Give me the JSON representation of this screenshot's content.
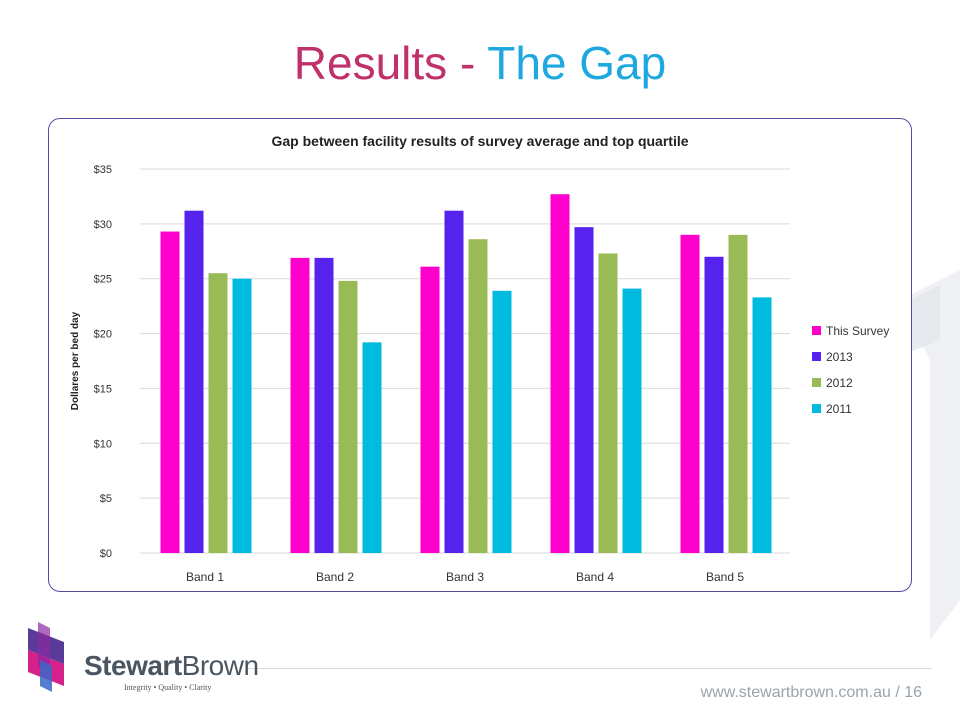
{
  "slide": {
    "title_part1": "Results - ",
    "title_part2": "The Gap",
    "footer": "www.stewartbrown.com.au / 16"
  },
  "logo": {
    "name_part1": "Stewart",
    "name_part2": "Brown",
    "tagline": "Integrity • Quality • Clarity"
  },
  "colors": {
    "title_red": "#c0306a",
    "title_blue": "#1ea8e0",
    "frame": "#5b4a9e"
  },
  "chart_data": {
    "type": "bar",
    "title": "Gap between facility results of survey average and top quartile",
    "xlabel": "",
    "ylabel": "Dollares per bed day",
    "categories": [
      "Band 1",
      "Band 2",
      "Band 3",
      "Band 4",
      "Band 5"
    ],
    "series": [
      {
        "name": "This Survey",
        "color": "#ff00cc",
        "values": [
          29.3,
          26.9,
          26.1,
          32.7,
          29.0
        ]
      },
      {
        "name": "2013",
        "color": "#5522ee",
        "values": [
          31.2,
          26.9,
          31.2,
          29.7,
          27.0
        ]
      },
      {
        "name": "2012",
        "color": "#99bb55",
        "values": [
          25.5,
          24.8,
          28.6,
          27.3,
          29.0
        ]
      },
      {
        "name": "2011",
        "color": "#00bbdd",
        "values": [
          25.0,
          19.2,
          23.9,
          24.1,
          23.3
        ]
      }
    ],
    "ylim": [
      0,
      35
    ],
    "yticks": [
      0,
      5,
      10,
      15,
      20,
      25,
      30,
      35
    ],
    "ytick_labels": [
      "$0",
      "$5",
      "$10",
      "$15",
      "$20",
      "$25",
      "$30",
      "$35"
    ],
    "grid": true,
    "legend": "right"
  }
}
